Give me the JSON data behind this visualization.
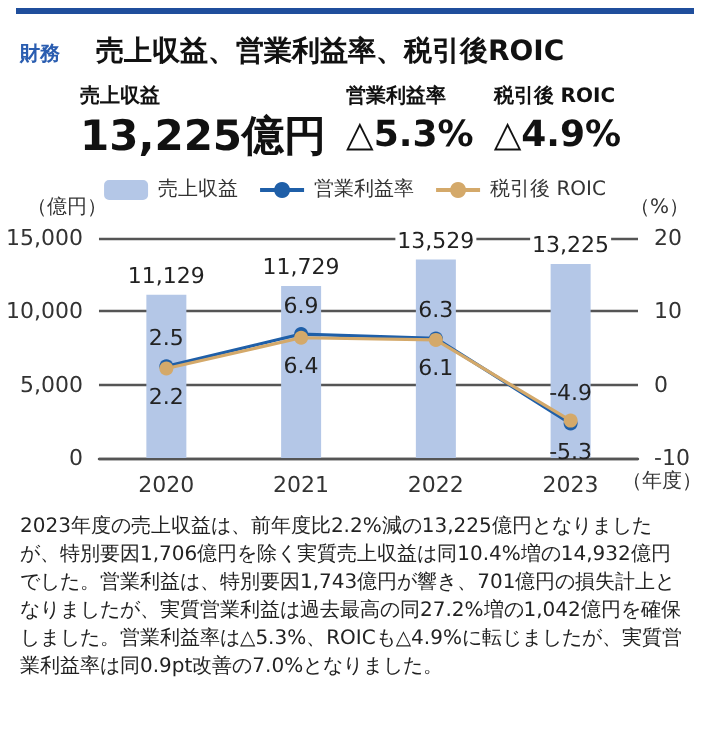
{
  "chart_data": {
    "type": "bar",
    "title": "売上収益、営業利益率、税引後ROIC",
    "subtitle": "財務",
    "annotations": [
      "売上収益",
      "13,225億円",
      "営業利益率",
      "△5.3%",
      "税引後 ROIC",
      "△4.9%",
      "2023年度の売上収益は、前年度比2.2%減の13,225億円となりましたが、特別要因1,706億円を除く実質売上収益は同10.4%増の14,932億円でした。営業利益は、特別要因1,743億円が響き、701億円の損失計上となりましたが、実質営業利益は過去最高の同27.2%増の1,042億円を確保しました。営業利益率は△5.3%、ROICも△4.9%に転じましたが、実質営業利益率は同0.9pt改善の7.0%となりました。"
    ],
    "categories": [
      "2020",
      "2021",
      "2022",
      "2023"
    ],
    "xlabel": "（年度）",
    "ylabel": "（億円）",
    "y2label": "（%）",
    "series": [
      {
        "name": "売上収益",
        "color": "#b4c7e7",
        "values": [
          11129,
          11729,
          13529,
          13225
        ],
        "value_labels": [
          "11,129",
          "11,729",
          "13,529",
          "13,225"
        ]
      },
      {
        "name": "営業利益率",
        "type": "line",
        "axis": "y2",
        "color": "#1f5fa8",
        "values": [
          2.5,
          6.9,
          6.3,
          -5.3
        ]
      },
      {
        "name": "税引後 ROIC",
        "type": "line",
        "axis": "y2",
        "color": "#d4a96a",
        "values": [
          2.2,
          6.4,
          6.1,
          -4.9
        ]
      }
    ],
    "ylim": [
      0,
      15000
    ],
    "yticks": [
      0,
      {
        "value": 5000,
        "label": "5,000"
      },
      {
        "value": 10000,
        "label": "10,000"
      },
      {
        "value": 15000,
        "label": "15,000"
      }
    ],
    "y2lim": [
      -10,
      20
    ],
    "y2ticks": [
      -10,
      0,
      10,
      20
    ],
    "grid": "y",
    "legend": "top",
    "marker": "circle",
    "line_style": "solid",
    "data_labels": true
  }
}
